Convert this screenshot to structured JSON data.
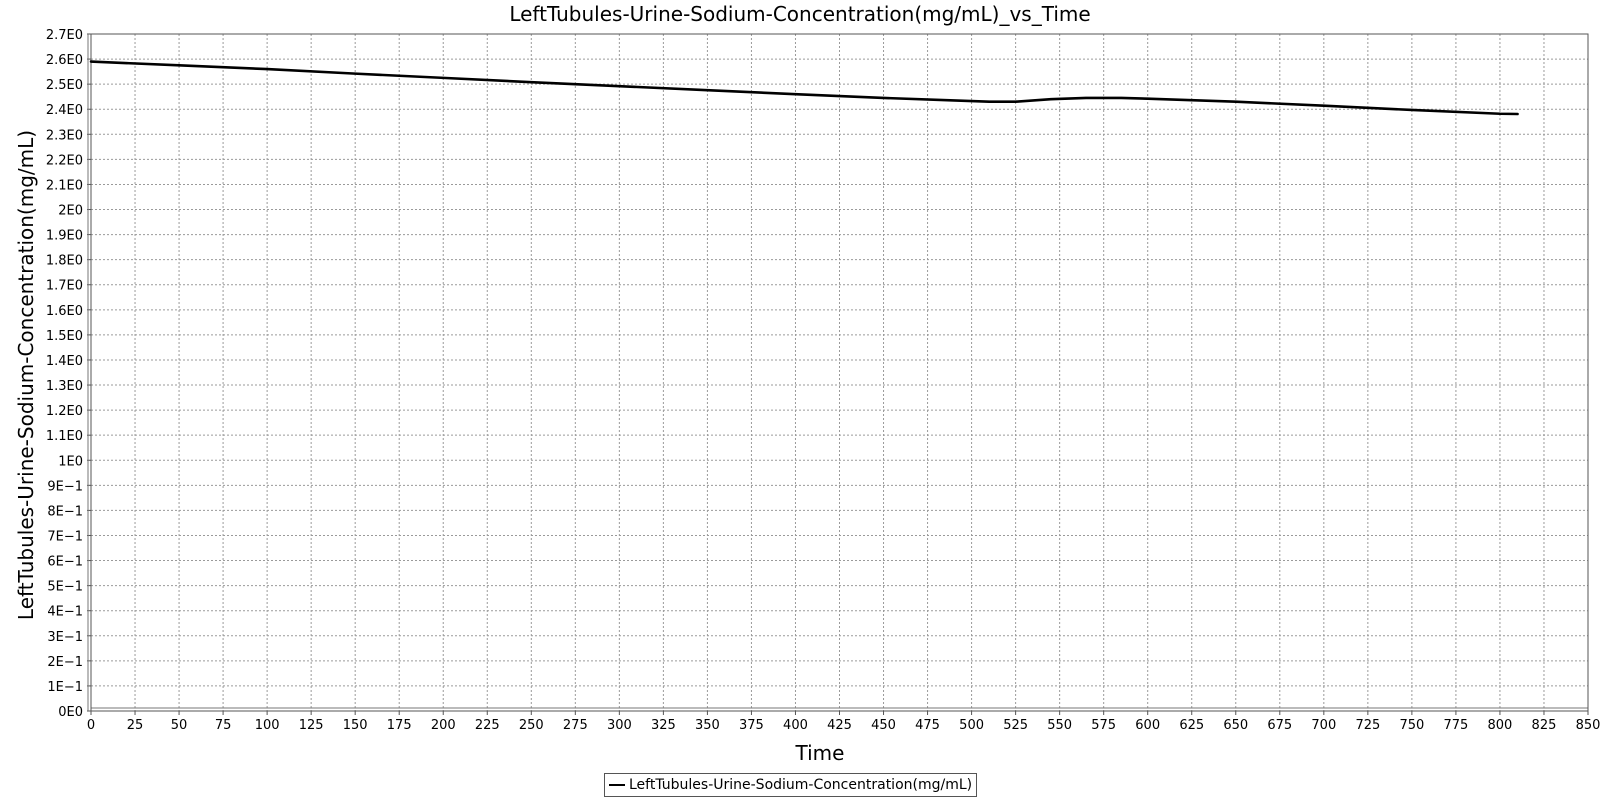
{
  "chart_data": {
    "type": "line",
    "title": "LeftTubules-Urine-Sodium-Concentration(mg/mL)_vs_Time",
    "xlabel": "Time",
    "ylabel": "LeftTubules-Urine-Sodium-Concentration(mg/mL)",
    "xlim": [
      0,
      850
    ],
    "ylim": [
      0,
      2.7
    ],
    "x_ticks": [
      0,
      25,
      50,
      75,
      100,
      125,
      150,
      175,
      200,
      225,
      250,
      275,
      300,
      325,
      350,
      375,
      400,
      425,
      450,
      475,
      500,
      525,
      550,
      575,
      600,
      625,
      650,
      675,
      700,
      725,
      750,
      775,
      800,
      825,
      850
    ],
    "x_tick_labels": [
      "0",
      "25",
      "50",
      "75",
      "100",
      "125",
      "150",
      "175",
      "200",
      "225",
      "250",
      "275",
      "300",
      "325",
      "350",
      "375",
      "400",
      "425",
      "450",
      "475",
      "500",
      "525",
      "550",
      "575",
      "600",
      "625",
      "650",
      "675",
      "700",
      "725",
      "750",
      "775",
      "800",
      "825",
      "850"
    ],
    "y_ticks": [
      0,
      0.1,
      0.2,
      0.3,
      0.4,
      0.5,
      0.6,
      0.7,
      0.8,
      0.9,
      1.0,
      1.1,
      1.2,
      1.3,
      1.4,
      1.5,
      1.6,
      1.7,
      1.8,
      1.9,
      2.0,
      2.1,
      2.2,
      2.3,
      2.4,
      2.5,
      2.6,
      2.7
    ],
    "y_tick_labels": [
      "0E0",
      "1E−1",
      "2E−1",
      "3E−1",
      "4E−1",
      "5E−1",
      "6E−1",
      "7E−1",
      "8E−1",
      "9E−1",
      "1E0",
      "1.1E0",
      "1.2E0",
      "1.3E0",
      "1.4E0",
      "1.5E0",
      "1.6E0",
      "1.7E0",
      "1.8E0",
      "1.9E0",
      "2E0",
      "2.1E0",
      "2.2E0",
      "2.3E0",
      "2.4E0",
      "2.5E0",
      "2.6E0",
      "2.7E0"
    ],
    "grid": true,
    "legend_position": "bottom-center",
    "series": [
      {
        "name": "LeftTubules-Urine-Sodium-Concentration(mg/mL)",
        "color": "#000000",
        "x": [
          0,
          50,
          100,
          150,
          200,
          250,
          300,
          350,
          400,
          450,
          490,
          510,
          525,
          545,
          565,
          585,
          600,
          650,
          700,
          750,
          800,
          810
        ],
        "y": [
          2.59,
          2.575,
          2.56,
          2.542,
          2.525,
          2.508,
          2.492,
          2.476,
          2.46,
          2.445,
          2.435,
          2.43,
          2.43,
          2.44,
          2.445,
          2.445,
          2.442,
          2.43,
          2.414,
          2.397,
          2.382,
          2.381
        ]
      }
    ]
  }
}
